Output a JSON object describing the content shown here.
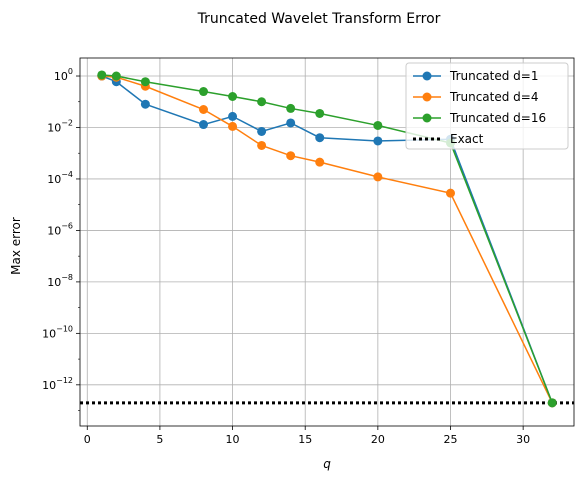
{
  "chart_data": {
    "type": "line",
    "title": "Truncated Wavelet Transform Error",
    "xlabel": "q",
    "ylabel": "Max error",
    "xlim": [
      -0.5,
      33.5
    ],
    "ylog": true,
    "ylim_log10": [
      -13.6,
      0.7
    ],
    "grid": true,
    "legend_position": "upper right",
    "x_ticks": [
      0,
      5,
      10,
      15,
      20,
      25,
      30
    ],
    "x_tick_labels": [
      "0",
      "5",
      "10",
      "15",
      "20",
      "25",
      "30"
    ],
    "y_ticks_log10": [
      0,
      -2,
      -4,
      -6,
      -8,
      -10,
      -12
    ],
    "y_tick_labels": [
      "10^0",
      "10^-2",
      "10^-4",
      "10^-6",
      "10^-8",
      "10^-10",
      "10^-12"
    ],
    "series": [
      {
        "name": "Truncated d=1",
        "color": "#1f77b4",
        "marker": "circle",
        "x": [
          1,
          2,
          4,
          8,
          10,
          12,
          14,
          16,
          20,
          25,
          32
        ],
        "y": [
          1.0,
          0.6,
          0.08,
          0.013,
          0.027,
          0.007,
          0.015,
          0.004,
          0.003,
          0.0035,
          2e-13
        ]
      },
      {
        "name": "Truncated d=4",
        "color": "#ff7f0e",
        "marker": "circle",
        "x": [
          1,
          2,
          4,
          8,
          10,
          12,
          14,
          16,
          20,
          25,
          32
        ],
        "y": [
          1.0,
          0.9,
          0.4,
          0.05,
          0.011,
          0.002,
          0.0008,
          0.00045,
          0.00012,
          2.8e-05,
          2e-13
        ]
      },
      {
        "name": "Truncated d=16",
        "color": "#2ca02c",
        "marker": "circle",
        "x": [
          1,
          2,
          4,
          8,
          10,
          12,
          14,
          16,
          20,
          25,
          32
        ],
        "y": [
          1.1,
          1.0,
          0.6,
          0.25,
          0.16,
          0.1,
          0.055,
          0.035,
          0.012,
          0.0025,
          2e-13
        ]
      },
      {
        "name": "Exact",
        "color": "#000000",
        "style": "dotted",
        "y_constant": 2e-13
      }
    ]
  }
}
